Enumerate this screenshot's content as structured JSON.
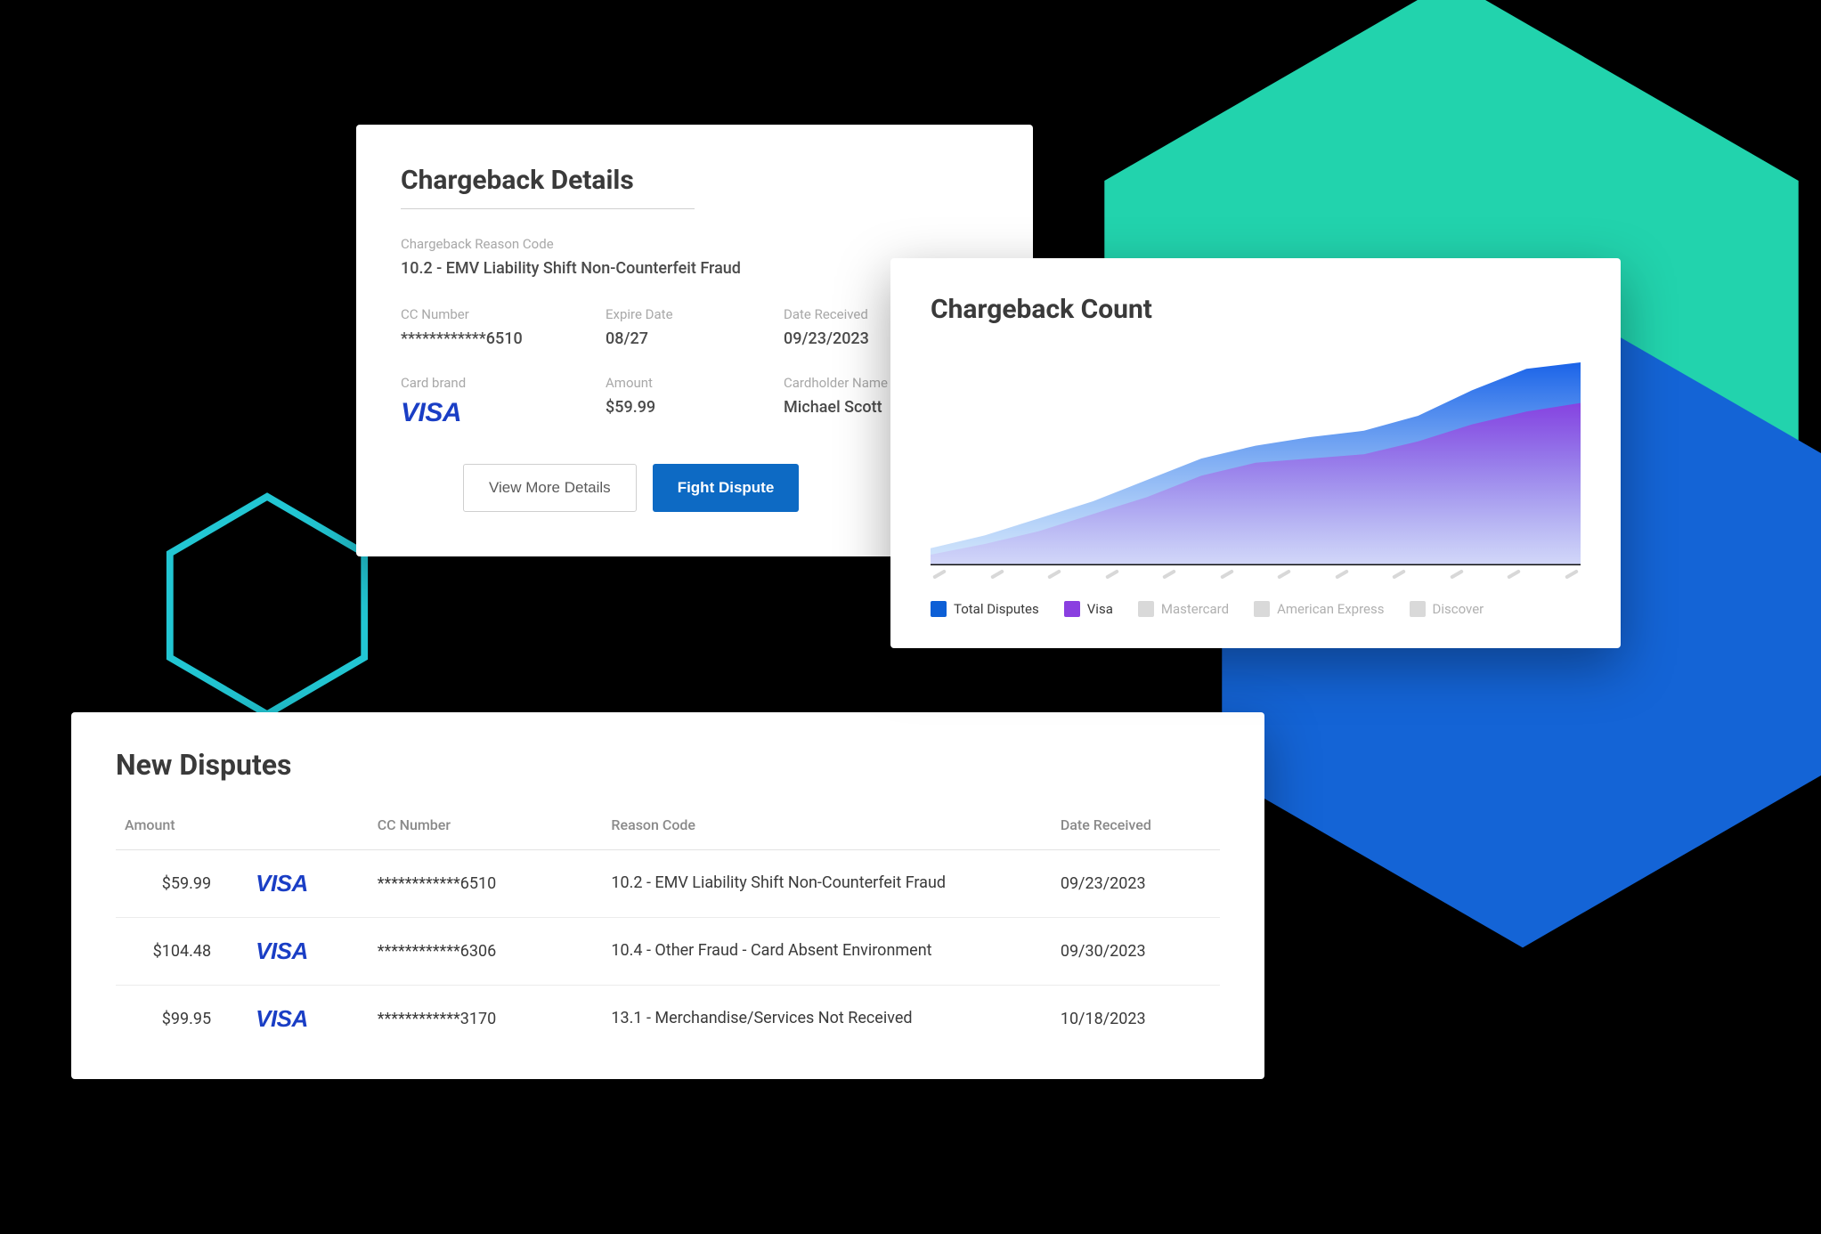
{
  "details_card": {
    "title": "Chargeback Details",
    "reason_label": "Chargeback Reason Code",
    "reason_value": "10.2 - EMV Liability Shift Non-Counterfeit Fraud",
    "cc_label": "CC Number",
    "cc_value": "************6510",
    "expire_label": "Expire Date",
    "expire_value": "08/27",
    "date_label": "Date Received",
    "date_value": "09/23/2023",
    "brand_label": "Card brand",
    "brand_value": "VISA",
    "amount_label": "Amount",
    "amount_value": "$59.99",
    "holder_label": "Cardholder Name",
    "holder_value": "Michael Scott",
    "btn_more": "View More Details",
    "btn_fight": "Fight Dispute"
  },
  "chart_card": {
    "title": "Chargeback Count",
    "type": "area",
    "xlim": [
      0,
      12
    ],
    "ylim": [
      0,
      100
    ],
    "background_color": "#ffffff",
    "axis_color": "#111111",
    "tick_color": "#d8d8d8",
    "tick_count": 12,
    "series": [
      {
        "name": "Total Disputes",
        "color_top": "#1a63e8",
        "color_bottom": "#5aa0f2",
        "opacity": 1.0,
        "values": [
          8,
          14,
          22,
          30,
          40,
          50,
          56,
          60,
          63,
          70,
          82,
          92,
          95
        ]
      },
      {
        "name": "Visa",
        "color_top": "#8a3fe0",
        "color_bottom": "#c9a8f0",
        "opacity": 0.95,
        "values": [
          5,
          10,
          16,
          24,
          32,
          42,
          48,
          50,
          52,
          58,
          66,
          72,
          76
        ]
      }
    ],
    "legend": [
      {
        "label": "Total Disputes",
        "color": "#0d5fd6",
        "text_color": "#3a3a3a",
        "active": true
      },
      {
        "label": "Visa",
        "color": "#8a3fe0",
        "text_color": "#3a3a3a",
        "active": true
      },
      {
        "label": "Mastercard",
        "color": "#d9d9d9",
        "text_color": "#b0b0b0",
        "active": false
      },
      {
        "label": "American Express",
        "color": "#d9d9d9",
        "text_color": "#b0b0b0",
        "active": false
      },
      {
        "label": "Discover",
        "color": "#d9d9d9",
        "text_color": "#b0b0b0",
        "active": false
      }
    ]
  },
  "table_card": {
    "title": "New Disputes",
    "columns": {
      "amount": "Amount",
      "cc": "CC Number",
      "reason": "Reason Code",
      "date": "Date Received"
    },
    "rows": [
      {
        "amount": "$59.99",
        "brand": "VISA",
        "cc": "************6510",
        "reason": "10.2 - EMV Liability Shift Non-Counterfeit Fraud",
        "date": "09/23/2023"
      },
      {
        "amount": "$104.48",
        "brand": "VISA",
        "cc": "************6306",
        "reason": "10.4 - Other Fraud - Card Absent Environment",
        "date": "09/30/2023"
      },
      {
        "amount": "$99.95",
        "brand": "VISA",
        "cc": "************3170",
        "reason": "13.1 - Merchandise/Services Not Received",
        "date": "10/18/2023"
      }
    ]
  },
  "hexagons": {
    "teal": {
      "fill": "#22d3ad",
      "size": 900
    },
    "blue": {
      "fill": "#1464d6",
      "size": 780
    },
    "cyan_outline": {
      "stroke": "#22c6d3",
      "stroke_width": 8,
      "size": 260
    }
  }
}
